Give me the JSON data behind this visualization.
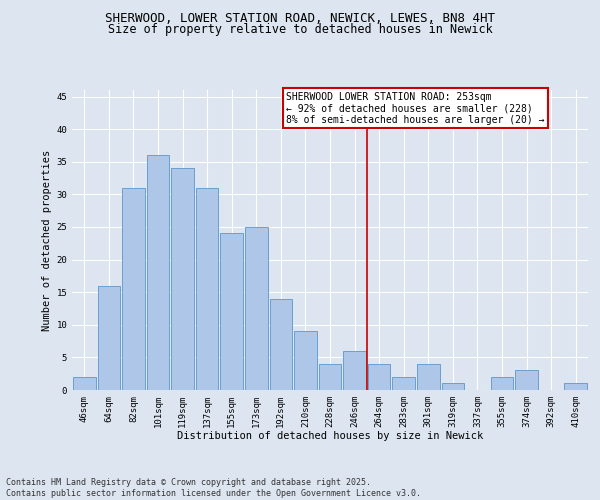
{
  "title1": "SHERWOOD, LOWER STATION ROAD, NEWICK, LEWES, BN8 4HT",
  "title2": "Size of property relative to detached houses in Newick",
  "xlabel": "Distribution of detached houses by size in Newick",
  "ylabel": "Number of detached properties",
  "categories": [
    "46sqm",
    "64sqm",
    "82sqm",
    "101sqm",
    "119sqm",
    "137sqm",
    "155sqm",
    "173sqm",
    "192sqm",
    "210sqm",
    "228sqm",
    "246sqm",
    "264sqm",
    "283sqm",
    "301sqm",
    "319sqm",
    "337sqm",
    "355sqm",
    "374sqm",
    "392sqm",
    "410sqm"
  ],
  "values": [
    2,
    16,
    31,
    36,
    34,
    31,
    24,
    25,
    14,
    9,
    4,
    6,
    4,
    2,
    4,
    1,
    0,
    2,
    3,
    0,
    1
  ],
  "bar_color": "#aec6e8",
  "bar_edge_color": "#6a9fd0",
  "vline_color": "#cc0000",
  "annotation_text": "SHERWOOD LOWER STATION ROAD: 253sqm\n← 92% of detached houses are smaller (228)\n8% of semi-detached houses are larger (20) →",
  "annotation_box_color": "#ffffff",
  "annotation_box_edge_color": "#cc0000",
  "ylim": [
    0,
    46
  ],
  "yticks": [
    0,
    5,
    10,
    15,
    20,
    25,
    30,
    35,
    40,
    45
  ],
  "footer": "Contains HM Land Registry data © Crown copyright and database right 2025.\nContains public sector information licensed under the Open Government Licence v3.0.",
  "bg_color": "#dde5f0",
  "plot_bg_color": "#dde5f0",
  "title1_fontsize": 9,
  "title2_fontsize": 8.5,
  "axis_label_fontsize": 7.5,
  "tick_fontsize": 6.5,
  "annotation_fontsize": 7,
  "footer_fontsize": 6
}
